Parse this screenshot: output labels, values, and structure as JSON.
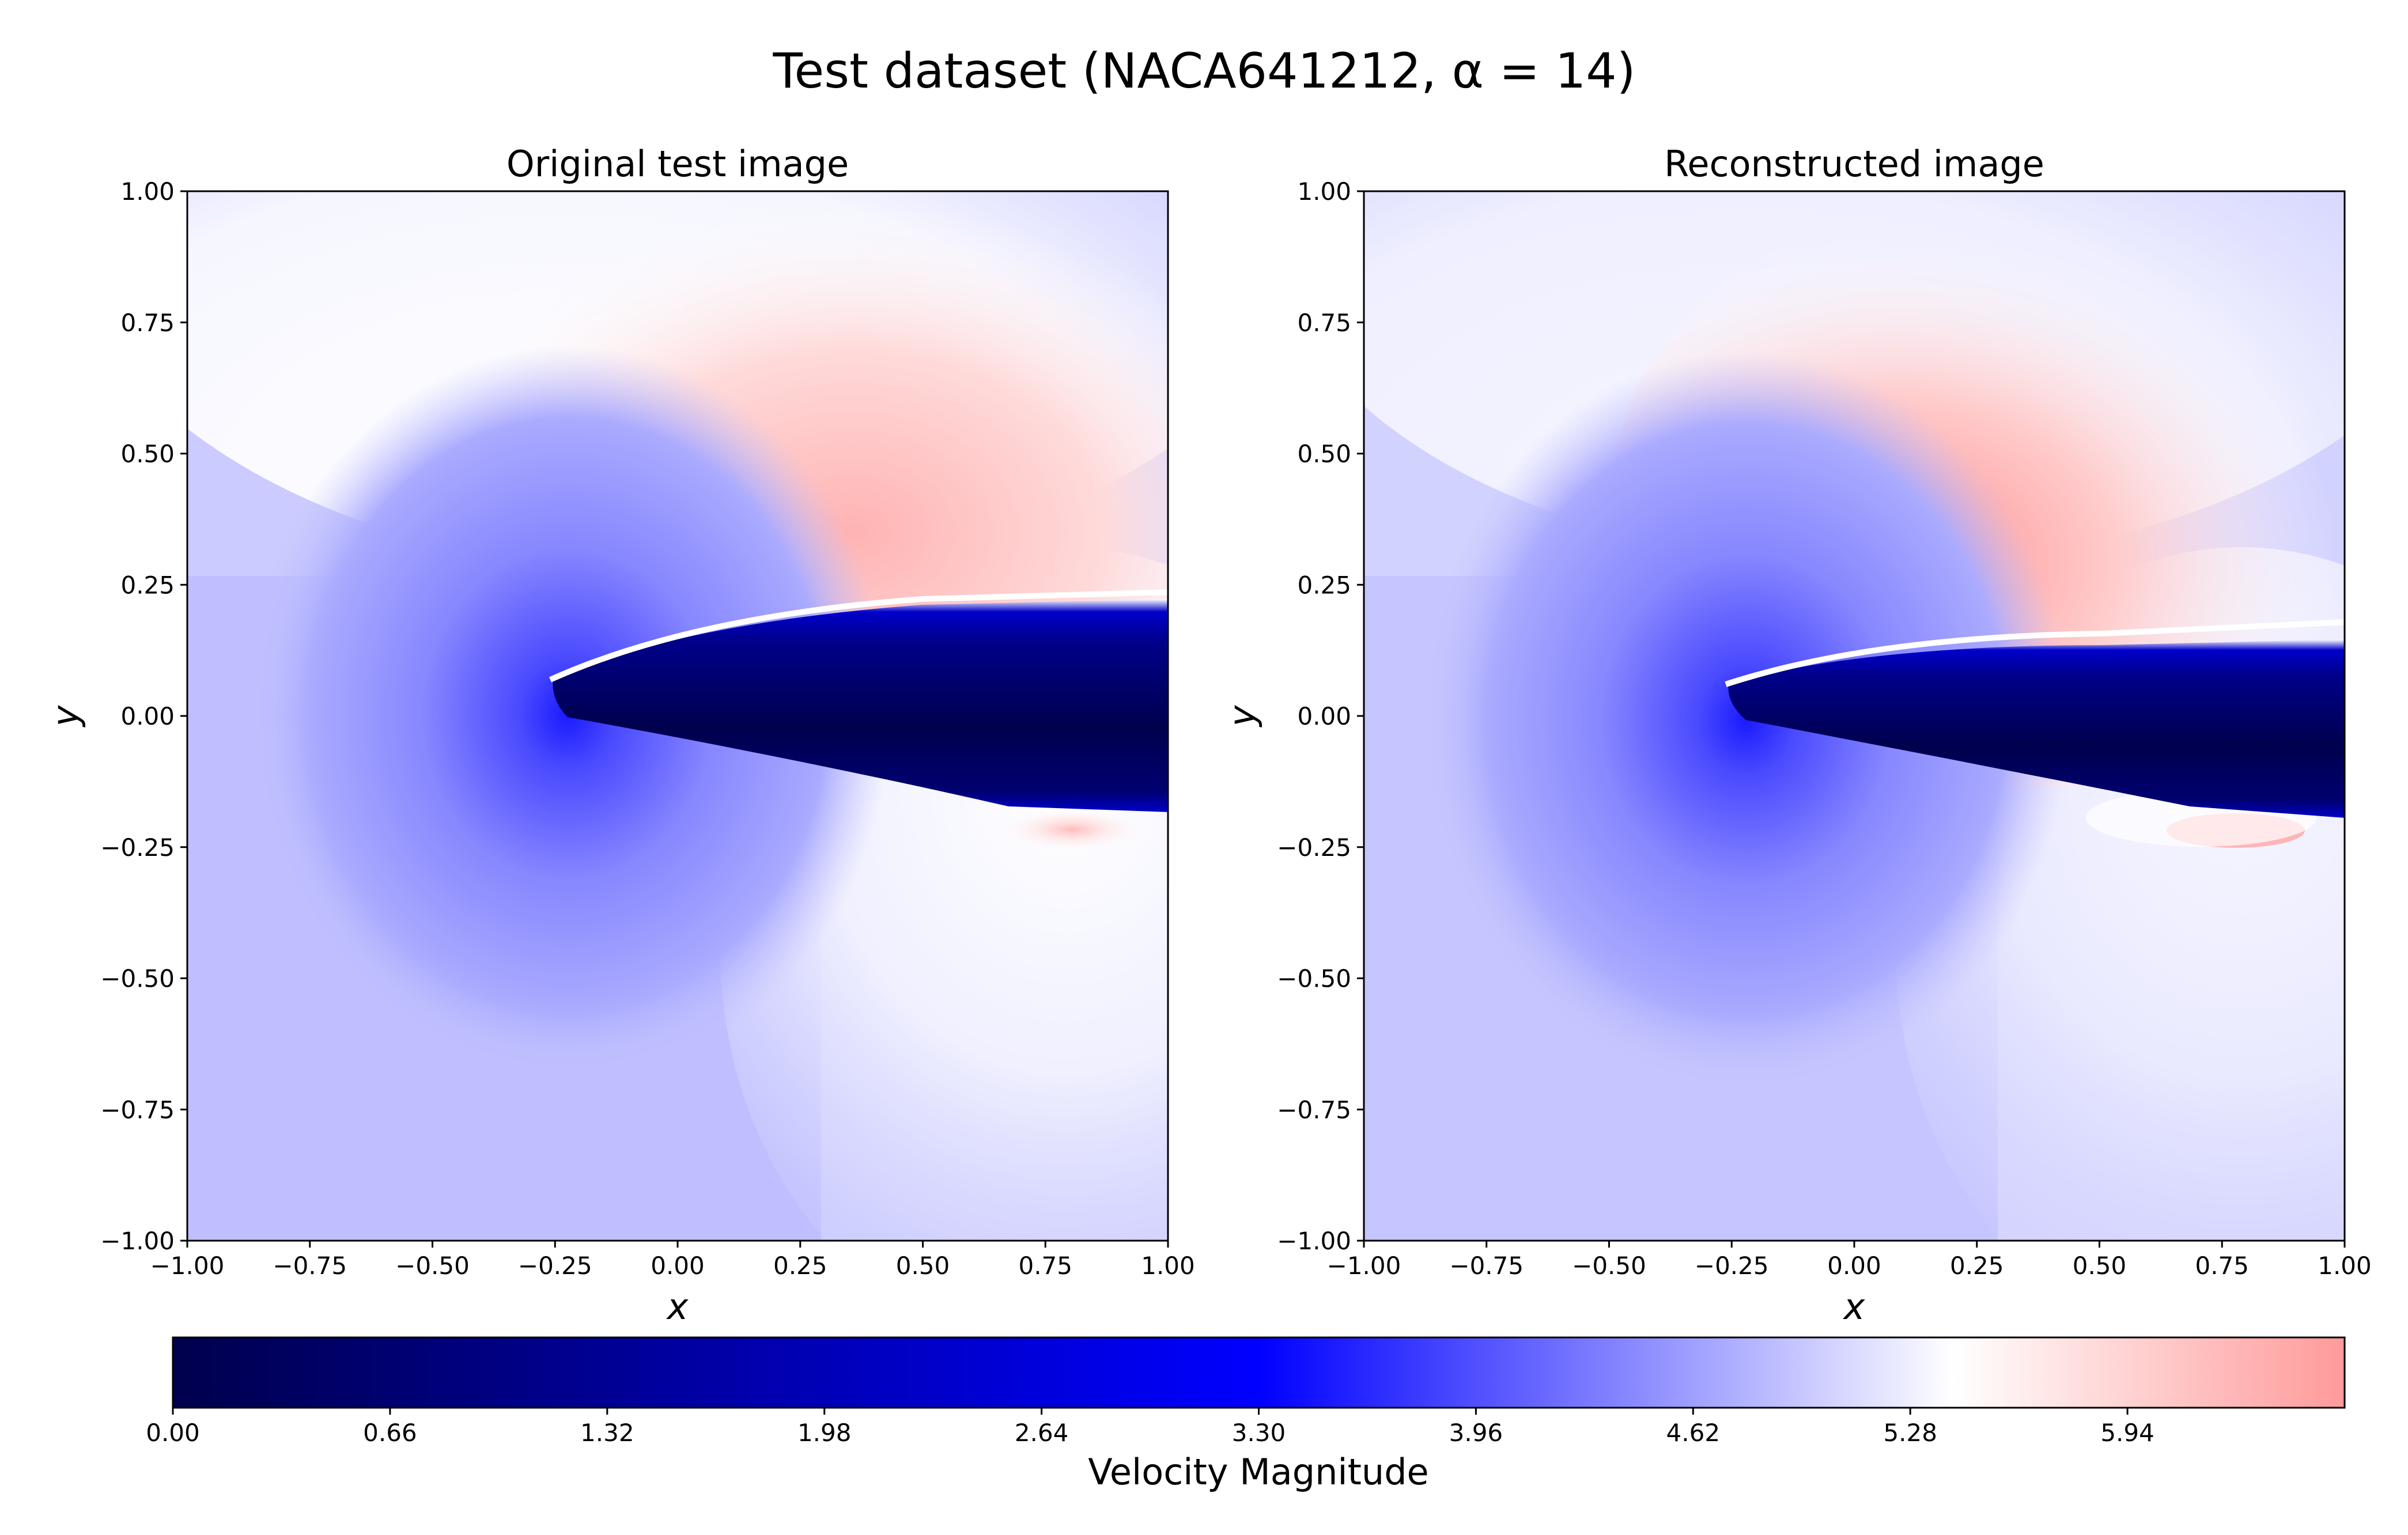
{
  "figure": {
    "title": "Test dataset (NACA641212, α = 14)"
  },
  "chart_data": [
    {
      "type": "heatmap",
      "title": "Original test image",
      "xlabel": "x",
      "ylabel": "y",
      "xlim": [
        -1.0,
        1.0
      ],
      "ylim": [
        -1.0,
        1.0
      ],
      "xticks": [
        "−1.00",
        "−0.75",
        "−0.50",
        "−0.25",
        "0.00",
        "0.25",
        "0.50",
        "0.75",
        "1.00"
      ],
      "yticks": [
        "1.00",
        "0.75",
        "0.50",
        "0.25",
        "0.00",
        "−0.25",
        "−0.50",
        "−0.75",
        "−1.00"
      ],
      "field": "Velocity Magnitude",
      "features": {
        "leading_edge": [
          -0.24,
          0.07
        ],
        "stagnation_min_center": [
          -0.22,
          0.0
        ],
        "upper_high_velocity_peak": 5.9,
        "wake_region": "low velocity (≈0) band behind airfoil from x≈-0.24 to x=1.00",
        "lower_trailing_high_velocity_spot": [
          0.8,
          -0.22
        ]
      }
    },
    {
      "type": "heatmap",
      "title": "Reconstructed image",
      "xlabel": "x",
      "ylabel": "y",
      "xlim": [
        -1.0,
        1.0
      ],
      "ylim": [
        -1.0,
        1.0
      ],
      "xticks": [
        "−1.00",
        "−0.75",
        "−0.50",
        "−0.25",
        "0.00",
        "0.25",
        "0.50",
        "0.75",
        "1.00"
      ],
      "yticks": [
        "1.00",
        "0.75",
        "0.50",
        "0.25",
        "0.00",
        "−0.25",
        "−0.50",
        "−0.75",
        "−1.00"
      ],
      "field": "Velocity Magnitude",
      "features": {
        "leading_edge": [
          -0.24,
          0.07
        ],
        "stagnation_min_center": [
          -0.22,
          0.0
        ],
        "upper_high_velocity_peak": 6.2,
        "wake_region": "low velocity (≈0) band behind airfoil from x≈-0.24 to x=1.00",
        "lower_trailing_high_velocity_spot": [
          0.8,
          -0.22
        ]
      }
    }
  ],
  "colorbar": {
    "label": "Velocity Magnitude",
    "range": [
      0.0,
      6.6
    ],
    "ticks": [
      0.0,
      0.66,
      1.32,
      1.98,
      2.64,
      3.3,
      3.96,
      4.62,
      5.28,
      5.94
    ],
    "tick_labels": [
      "0.00",
      "0.66",
      "1.32",
      "1.98",
      "2.64",
      "3.30",
      "3.96",
      "4.62",
      "5.28",
      "5.94"
    ],
    "colors": [
      "#00004d",
      "#0000ff",
      "#ffffff",
      "#ff9a9a"
    ]
  }
}
